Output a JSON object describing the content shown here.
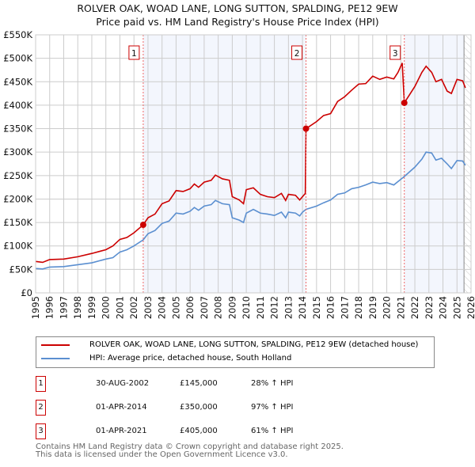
{
  "title": "ROLVER OAK, WOAD LANE, LONG SUTTON, SPALDING, PE12 9EW",
  "subtitle": "Price paid vs. HM Land Registry's House Price Index (HPI)",
  "chart_data": {
    "type": "line",
    "xlim": [
      1995,
      2026
    ],
    "ylim": [
      0,
      550000
    ],
    "yticks": [
      "£0",
      "£50K",
      "£100K",
      "£150K",
      "£200K",
      "£250K",
      "£300K",
      "£350K",
      "£400K",
      "£450K",
      "£500K",
      "£550K"
    ],
    "xticks": [
      "1995",
      "1996",
      "1997",
      "1998",
      "1999",
      "2000",
      "2001",
      "2002",
      "2003",
      "2004",
      "2005",
      "2006",
      "2007",
      "2008",
      "2009",
      "2010",
      "2011",
      "2012",
      "2013",
      "2014",
      "2015",
      "2016",
      "2017",
      "2018",
      "2019",
      "2020",
      "2021",
      "2022",
      "2023",
      "2024",
      "2025",
      "2026"
    ],
    "grid": true,
    "colors": {
      "property": "#cc0000",
      "hpi": "#5b8fd0"
    },
    "series": [
      {
        "name": "ROLVER OAK, WOAD LANE, LONG SUTTON, SPALDING, PE12 9EW (detached house)",
        "points": [
          [
            1995,
            67000
          ],
          [
            1995.5,
            65000
          ],
          [
            1996,
            71000
          ],
          [
            1997,
            72000
          ],
          [
            1998,
            77000
          ],
          [
            1999,
            84000
          ],
          [
            2000,
            92000
          ],
          [
            2000.5,
            100000
          ],
          [
            2001,
            114000
          ],
          [
            2001.5,
            118000
          ],
          [
            2002,
            128000
          ],
          [
            2002.66,
            145000
          ],
          [
            2003,
            160000
          ],
          [
            2003.5,
            168000
          ],
          [
            2004,
            190000
          ],
          [
            2004.5,
            196000
          ],
          [
            2005,
            218000
          ],
          [
            2005.5,
            216000
          ],
          [
            2006,
            222000
          ],
          [
            2006.3,
            232000
          ],
          [
            2006.6,
            225000
          ],
          [
            2007,
            236000
          ],
          [
            2007.5,
            240000
          ],
          [
            2007.8,
            251000
          ],
          [
            2008.3,
            243000
          ],
          [
            2008.8,
            240000
          ],
          [
            2009,
            205000
          ],
          [
            2009.5,
            198000
          ],
          [
            2009.8,
            190000
          ],
          [
            2010,
            220000
          ],
          [
            2010.5,
            224000
          ],
          [
            2011,
            210000
          ],
          [
            2011.5,
            205000
          ],
          [
            2012,
            203000
          ],
          [
            2012.5,
            212000
          ],
          [
            2012.8,
            197000
          ],
          [
            2013,
            210000
          ],
          [
            2013.5,
            208000
          ],
          [
            2013.8,
            198000
          ],
          [
            2014,
            205000
          ],
          [
            2014.2,
            212000
          ],
          [
            2014.25,
            350000
          ],
          [
            2015,
            365000
          ],
          [
            2015.5,
            378000
          ],
          [
            2016,
            382000
          ],
          [
            2016.5,
            408000
          ],
          [
            2017,
            418000
          ],
          [
            2017.5,
            432000
          ],
          [
            2018,
            445000
          ],
          [
            2018.5,
            446000
          ],
          [
            2019,
            462000
          ],
          [
            2019.5,
            455000
          ],
          [
            2020,
            460000
          ],
          [
            2020.5,
            456000
          ],
          [
            2020.8,
            470000
          ],
          [
            2021.1,
            490000
          ],
          [
            2021.25,
            405000
          ],
          [
            2022,
            440000
          ],
          [
            2022.5,
            470000
          ],
          [
            2022.8,
            483000
          ],
          [
            2023.2,
            470000
          ],
          [
            2023.5,
            450000
          ],
          [
            2023.9,
            455000
          ],
          [
            2024.3,
            430000
          ],
          [
            2024.6,
            425000
          ],
          [
            2025,
            455000
          ],
          [
            2025.4,
            452000
          ],
          [
            2025.6,
            437000
          ]
        ]
      },
      {
        "name": "HPI: Average price, detached house, South Holland",
        "points": [
          [
            1995,
            52000
          ],
          [
            1995.5,
            51000
          ],
          [
            1996,
            55000
          ],
          [
            1997,
            56000
          ],
          [
            1998,
            60000
          ],
          [
            1999,
            64000
          ],
          [
            2000,
            72000
          ],
          [
            2000.5,
            75000
          ],
          [
            2001,
            87000
          ],
          [
            2001.5,
            92000
          ],
          [
            2002,
            100000
          ],
          [
            2002.66,
            113000
          ],
          [
            2003,
            126000
          ],
          [
            2003.5,
            133000
          ],
          [
            2004,
            148000
          ],
          [
            2004.5,
            153000
          ],
          [
            2005,
            170000
          ],
          [
            2005.5,
            168000
          ],
          [
            2006,
            174000
          ],
          [
            2006.3,
            182000
          ],
          [
            2006.6,
            176000
          ],
          [
            2007,
            185000
          ],
          [
            2007.5,
            188000
          ],
          [
            2007.8,
            197000
          ],
          [
            2008.3,
            190000
          ],
          [
            2008.8,
            188000
          ],
          [
            2009,
            160000
          ],
          [
            2009.5,
            155000
          ],
          [
            2009.8,
            150000
          ],
          [
            2010,
            170000
          ],
          [
            2010.5,
            178000
          ],
          [
            2011,
            170000
          ],
          [
            2011.5,
            168000
          ],
          [
            2012,
            165000
          ],
          [
            2012.5,
            172000
          ],
          [
            2012.8,
            160000
          ],
          [
            2013,
            172000
          ],
          [
            2013.5,
            170000
          ],
          [
            2013.8,
            164000
          ],
          [
            2014,
            172000
          ],
          [
            2014.25,
            178000
          ],
          [
            2015,
            185000
          ],
          [
            2015.5,
            192000
          ],
          [
            2016,
            198000
          ],
          [
            2016.5,
            210000
          ],
          [
            2017,
            213000
          ],
          [
            2017.5,
            222000
          ],
          [
            2018,
            225000
          ],
          [
            2018.5,
            230000
          ],
          [
            2019,
            236000
          ],
          [
            2019.5,
            233000
          ],
          [
            2020,
            235000
          ],
          [
            2020.5,
            230000
          ],
          [
            2021,
            242000
          ],
          [
            2021.25,
            248000
          ],
          [
            2022,
            268000
          ],
          [
            2022.5,
            285000
          ],
          [
            2022.8,
            300000
          ],
          [
            2023.2,
            298000
          ],
          [
            2023.5,
            283000
          ],
          [
            2023.9,
            287000
          ],
          [
            2024.3,
            275000
          ],
          [
            2024.6,
            265000
          ],
          [
            2025,
            282000
          ],
          [
            2025.4,
            281000
          ],
          [
            2025.6,
            272000
          ]
        ]
      }
    ],
    "sales": [
      {
        "label": "1",
        "year": 2002.66,
        "price": 145000,
        "date": "30-AUG-2002",
        "price_text": "£145,000",
        "hpi_text": "28% ↑ HPI"
      },
      {
        "label": "2",
        "year": 2014.25,
        "price": 350000,
        "date": "01-APR-2014",
        "price_text": "£350,000",
        "hpi_text": "97% ↑ HPI"
      },
      {
        "label": "3",
        "year": 2021.25,
        "price": 405000,
        "date": "01-APR-2021",
        "price_text": "£405,000",
        "hpi_text": "61% ↑ HPI"
      }
    ],
    "data_end_year": 2025.5
  },
  "legend": {
    "property": "ROLVER OAK, WOAD LANE, LONG SUTTON, SPALDING, PE12 9EW (detached house)",
    "hpi": "HPI: Average price, detached house, South Holland"
  },
  "footer": {
    "line1": "Contains HM Land Registry data © Crown copyright and database right 2025.",
    "line2": "This data is licensed under the Open Government Licence v3.0."
  }
}
